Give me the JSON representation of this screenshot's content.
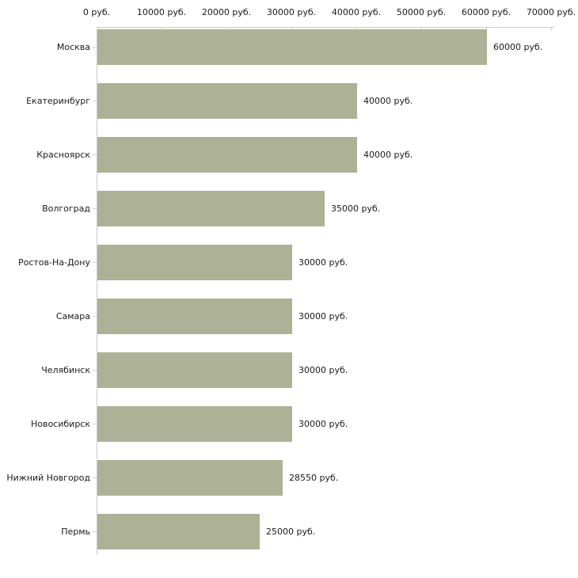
{
  "colors": {
    "bar": "#adb296",
    "axis": "#c9c9c9",
    "tick": "#d8d8bb",
    "text": "#1a1a1a",
    "background": "#ffffff"
  },
  "chart_data": {
    "type": "bar",
    "orientation": "horizontal",
    "title": "",
    "xlabel": "",
    "ylabel": "",
    "xlim": [
      0,
      70000
    ],
    "grid": false,
    "legend": null,
    "x_tick_values": [
      0,
      10000,
      20000,
      30000,
      40000,
      50000,
      60000,
      70000
    ],
    "x_tick_labels": [
      "0 руб.",
      "10000 руб.",
      "20000 руб.",
      "30000 руб.",
      "40000 руб.",
      "50000 руб.",
      "60000 руб.",
      "70000 руб."
    ],
    "categories": [
      "Москва",
      "Екатеринбург",
      "Красноярск",
      "Волгоград",
      "Ростов-На-Дону",
      "Самара",
      "Челябинск",
      "Новосибирск",
      "Нижний Новгород",
      "Пермь"
    ],
    "values": [
      60000,
      40000,
      40000,
      35000,
      30000,
      30000,
      30000,
      30000,
      28550,
      25000
    ],
    "value_labels": [
      "60000 руб.",
      "40000 руб.",
      "40000 руб.",
      "35000 руб.",
      "30000 руб.",
      "30000 руб.",
      "30000 руб.",
      "30000 руб.",
      "28550 руб.",
      "25000 руб."
    ]
  }
}
